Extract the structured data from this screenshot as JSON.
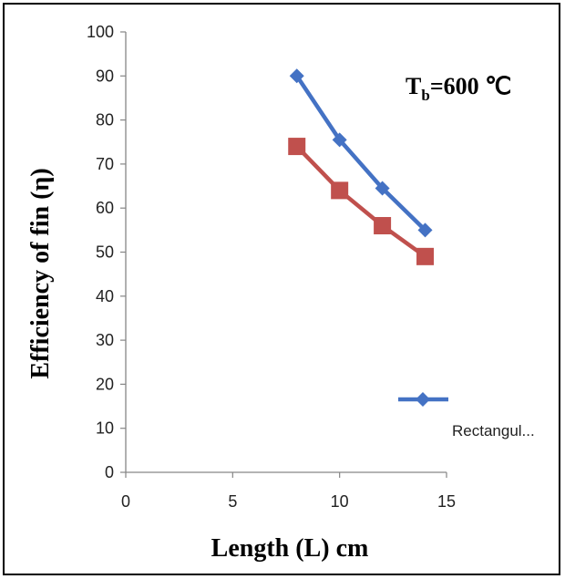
{
  "chart_data": {
    "type": "line",
    "xlabel": "Length (L) cm",
    "ylabel": "Efficiency  of fin (η)",
    "annotation": {
      "main": "T",
      "sub": "b",
      "rest": "=600 ℃"
    },
    "xlim": [
      0,
      15
    ],
    "ylim": [
      0,
      100
    ],
    "xticks": [
      0,
      5,
      10,
      15
    ],
    "yticks": [
      0,
      10,
      20,
      30,
      40,
      50,
      60,
      70,
      80,
      90,
      100
    ],
    "grid": false,
    "legend_position": "right",
    "series": [
      {
        "name": "Rectangul...",
        "marker": "diamond",
        "color": "#4472C4",
        "x": [
          8,
          10,
          12,
          14
        ],
        "y": [
          90,
          75.5,
          64.5,
          55
        ]
      },
      {
        "marker": "square",
        "color": "#C0504D",
        "x": [
          8,
          10,
          12,
          14
        ],
        "y": [
          74,
          64,
          56,
          49
        ]
      }
    ]
  }
}
